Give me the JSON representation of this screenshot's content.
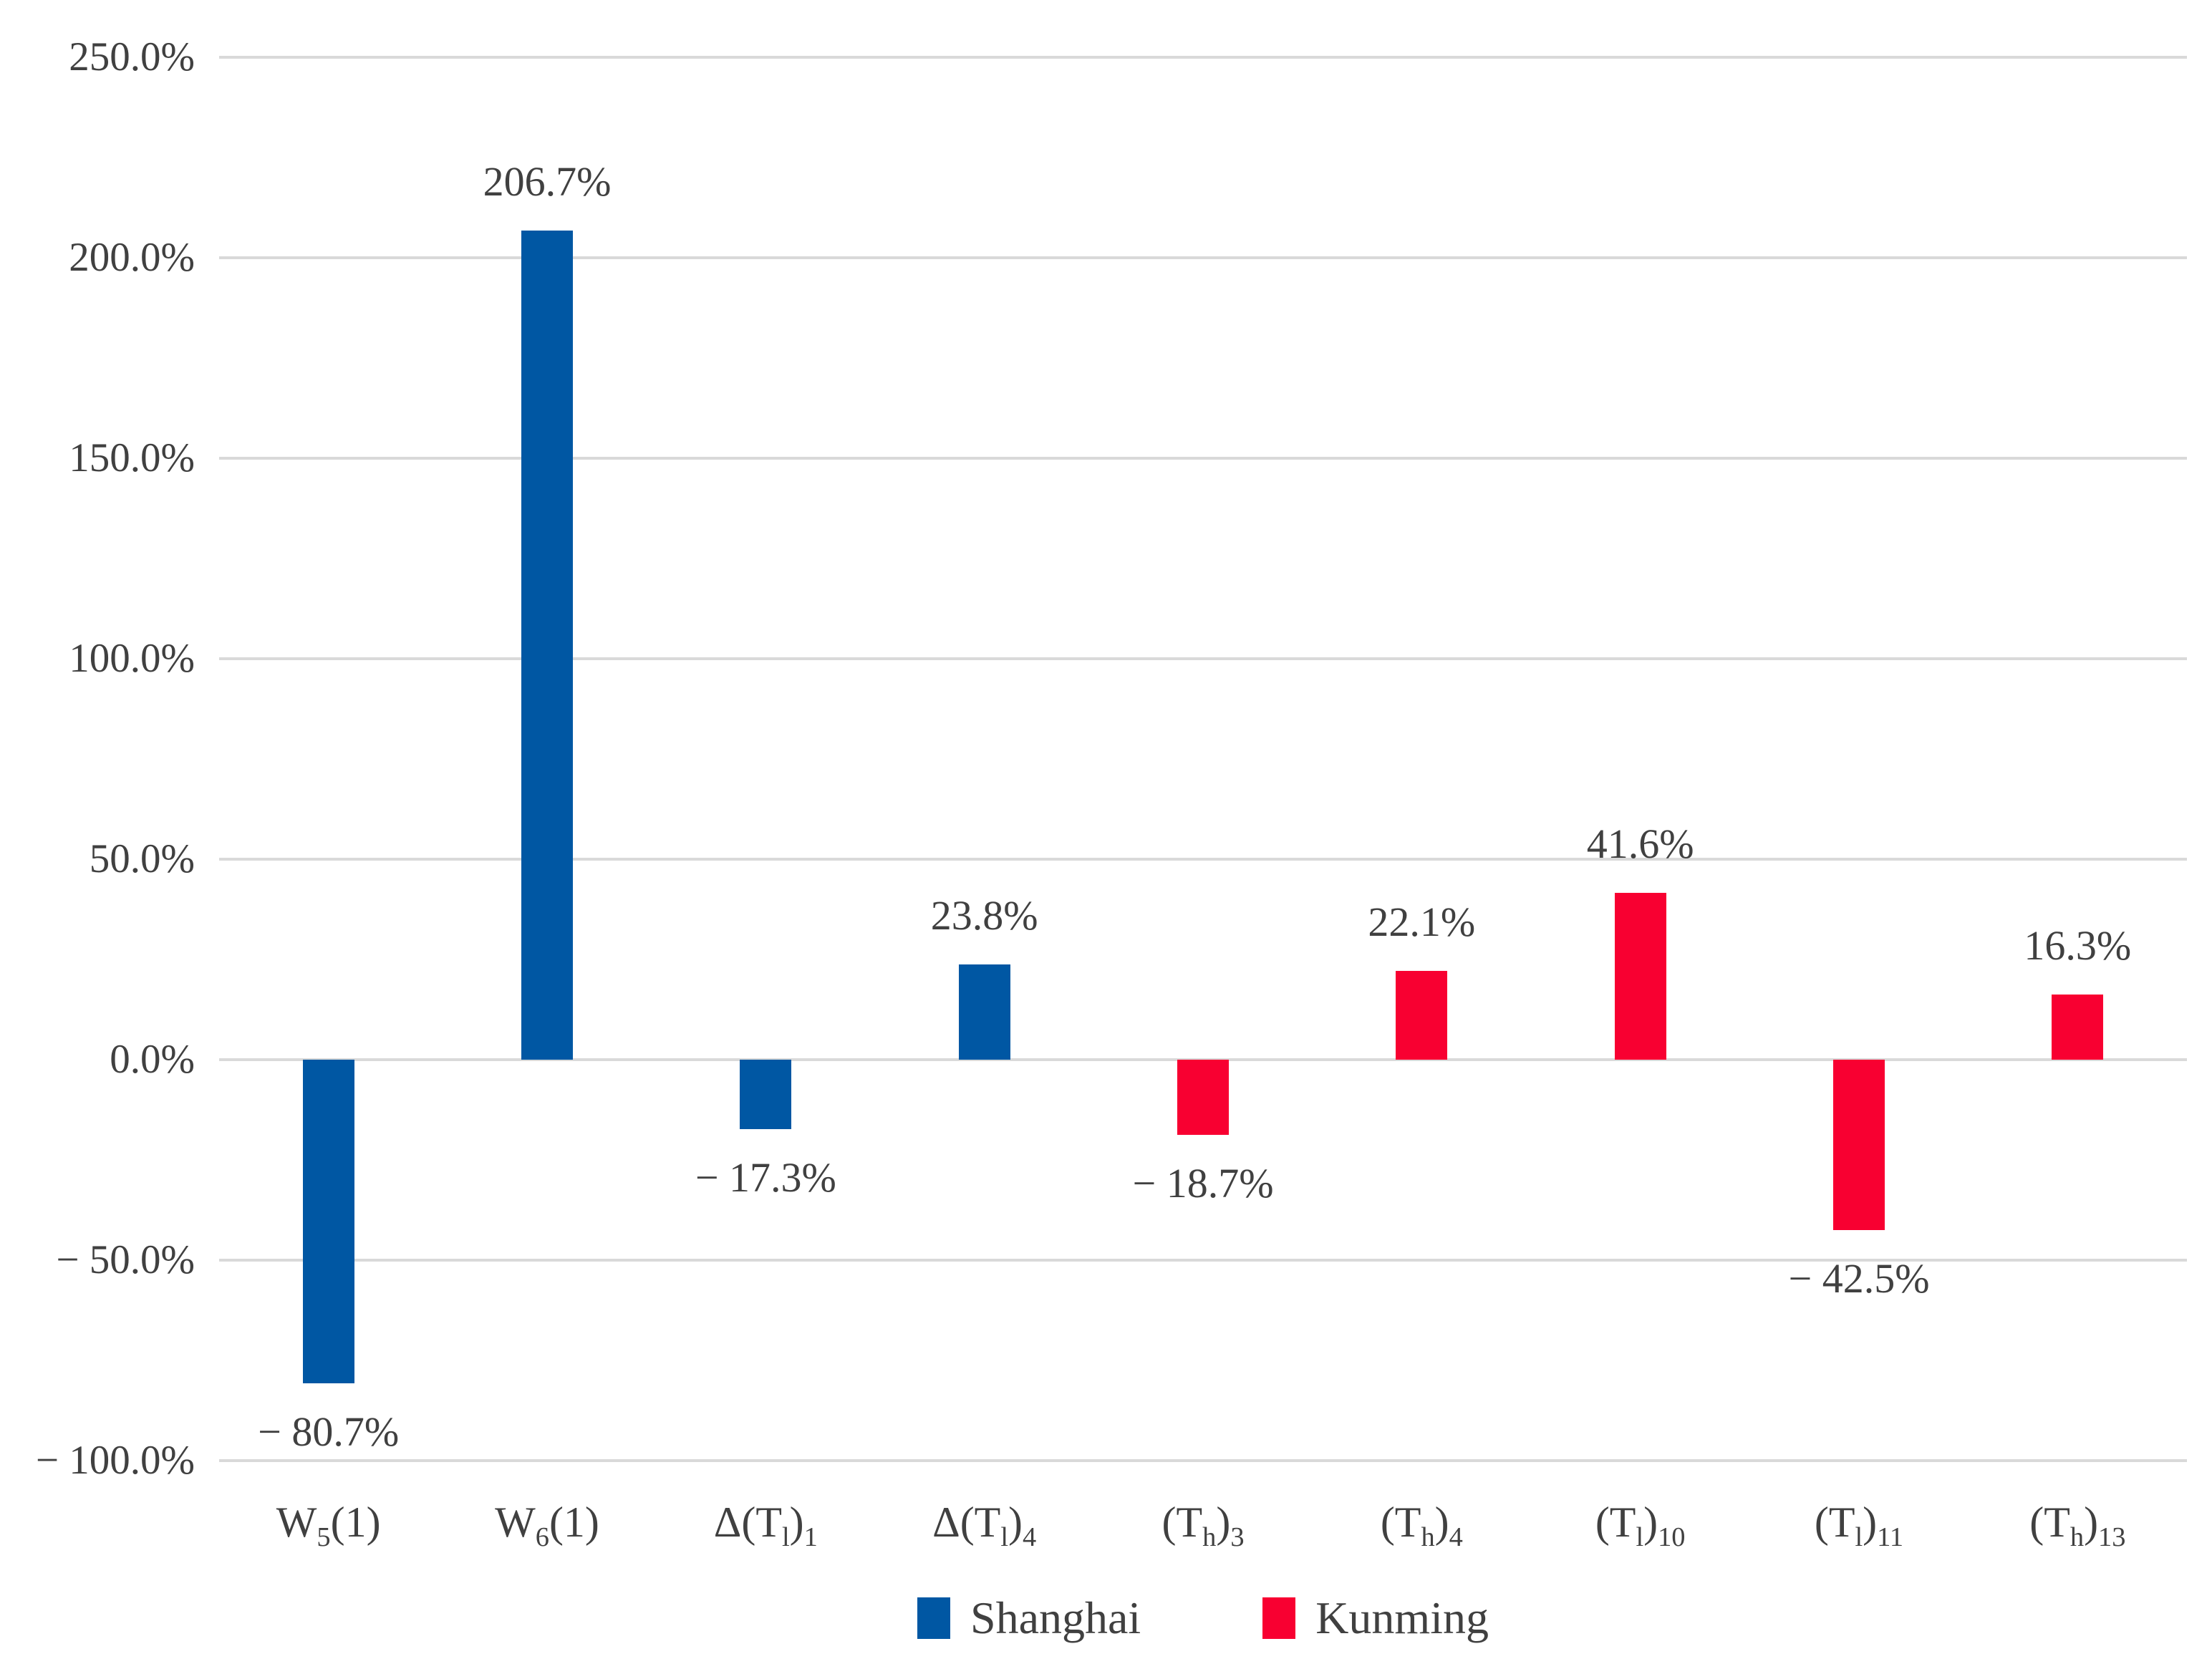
{
  "chart_data": {
    "type": "bar",
    "title": "",
    "xlabel": "",
    "ylabel": "",
    "categories": [
      "W5(1)",
      "W6(1)",
      "Δ(Tl)1",
      "Δ(Tl)4",
      "(Th)3",
      "(Th)4",
      "(Tl)10",
      "(Tl)11",
      "(Th)13"
    ],
    "categories_rich": [
      "W_5_(1)",
      "W_6_(1)",
      "Δ(T_l_)_1_",
      "Δ(T_l_)_4_",
      "(T_h_)_3_",
      "(T_h_)_4_",
      "(T_l_)_10_",
      "(T_l_)_11_",
      "(T_h_)_13_"
    ],
    "series": [
      {
        "name": "Shanghai",
        "color": "#0057A3",
        "values": [
          -80.7,
          206.7,
          -17.3,
          23.8,
          null,
          null,
          null,
          null,
          null
        ]
      },
      {
        "name": "Kunming",
        "color": "#F80031",
        "values": [
          null,
          null,
          null,
          null,
          -18.7,
          22.1,
          41.6,
          -42.5,
          16.3
        ]
      }
    ],
    "data_labels": [
      "− 80.7%",
      "206.7%",
      "− 17.3%",
      "23.8%",
      "− 18.7%",
      "22.1%",
      "41.6%",
      "− 42.5%",
      "16.3%"
    ],
    "ylim": [
      -100,
      250
    ],
    "ytick_step": 50,
    "ytick_labels": [
      "250.0%",
      "200.0%",
      "150.0%",
      "100.0%",
      "50.0%",
      "0.0%",
      "− 50.0%",
      "− 100.0%"
    ],
    "grid": "horizontal",
    "legend_position": "bottom-center"
  },
  "colors": {
    "grid": "#D9D9D9",
    "text": "#404040",
    "background": "#FFFFFF",
    "shanghai_blue": "#0057A3",
    "kunming_red": "#F80031"
  }
}
